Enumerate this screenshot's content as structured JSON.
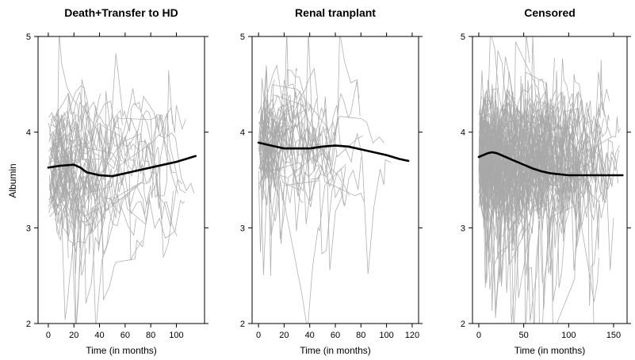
{
  "figure": {
    "ylabel": "Albumin"
  },
  "chart_data": [
    {
      "type": "line",
      "title": "Death+Transfer to HD",
      "xlabel": "Time (in months)",
      "ylabel": "Albumin",
      "xlim": [
        -8,
        122
      ],
      "ylim": [
        2,
        5
      ],
      "xticks": [
        0,
        20,
        40,
        60,
        80,
        100
      ],
      "yticks": [
        2,
        3,
        4,
        5
      ],
      "grid": false,
      "series": [
        {
          "role": "smooth",
          "color": "#000000",
          "x": [
            0,
            10,
            20,
            25,
            30,
            40,
            50,
            60,
            70,
            80,
            90,
            100,
            110,
            115
          ],
          "y": [
            3.63,
            3.65,
            3.66,
            3.63,
            3.58,
            3.55,
            3.54,
            3.57,
            3.6,
            3.63,
            3.66,
            3.69,
            3.73,
            3.75
          ]
        }
      ],
      "individual_trajectories": {
        "color": "#a8a8a8",
        "seed": 11,
        "count": 75,
        "time_max": 115,
        "mean": 3.62,
        "spread": 0.38,
        "start_min": 0,
        "start_max": 6
      }
    },
    {
      "type": "line",
      "title": "Renal tranplant",
      "xlabel": "Time (in months)",
      "ylabel": "",
      "xlim": [
        -5,
        125
      ],
      "ylim": [
        2,
        5
      ],
      "xticks": [
        0,
        20,
        40,
        60,
        80,
        100,
        120
      ],
      "yticks": [
        2,
        3,
        4,
        5
      ],
      "grid": false,
      "series": [
        {
          "role": "smooth",
          "color": "#000000",
          "x": [
            0,
            10,
            20,
            30,
            40,
            50,
            60,
            70,
            80,
            90,
            100,
            110,
            117
          ],
          "y": [
            3.89,
            3.86,
            3.83,
            3.83,
            3.83,
            3.85,
            3.86,
            3.85,
            3.82,
            3.79,
            3.76,
            3.72,
            3.7
          ]
        }
      ],
      "individual_trajectories": {
        "color": "#a8a8a8",
        "seed": 23,
        "count": 70,
        "time_max": 117,
        "mean": 3.85,
        "spread": 0.3,
        "start_min": 0,
        "start_max": 4
      }
    },
    {
      "type": "line",
      "title": "Censored",
      "xlabel": "Time (in months)",
      "ylabel": "",
      "xlim": [
        -7,
        165
      ],
      "ylim": [
        2,
        5
      ],
      "xticks": [
        0,
        50,
        100,
        150
      ],
      "yticks": [
        2,
        3,
        4,
        5
      ],
      "grid": false,
      "series": [
        {
          "role": "smooth",
          "color": "#000000",
          "x": [
            0,
            10,
            15,
            20,
            30,
            40,
            50,
            60,
            70,
            80,
            90,
            100,
            120,
            140,
            160
          ],
          "y": [
            3.74,
            3.78,
            3.79,
            3.78,
            3.74,
            3.7,
            3.66,
            3.62,
            3.59,
            3.57,
            3.56,
            3.55,
            3.55,
            3.55,
            3.55
          ]
        }
      ],
      "individual_trajectories": {
        "color": "#a8a8a8",
        "seed": 37,
        "count": 160,
        "time_max": 160,
        "mean": 3.72,
        "spread": 0.34,
        "start_min": 0,
        "start_max": 3
      }
    }
  ]
}
